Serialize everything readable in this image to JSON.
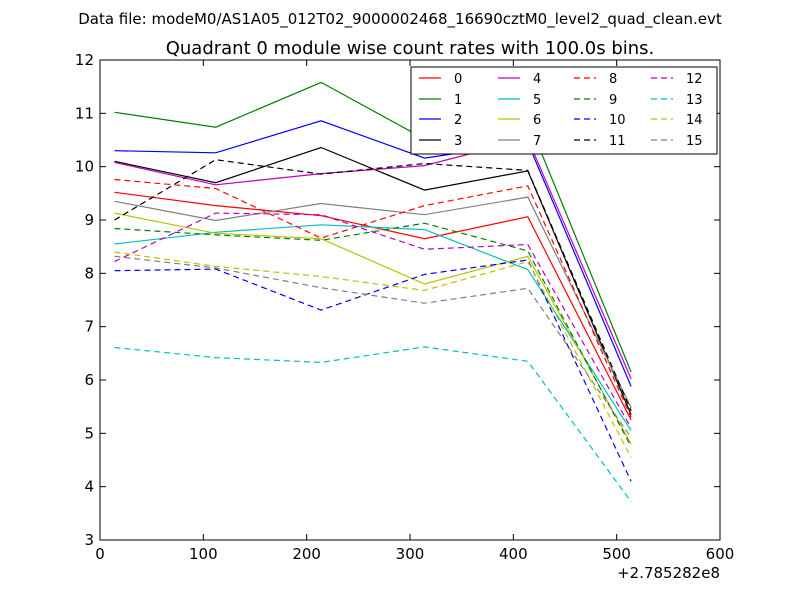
{
  "header": {
    "data_file": "Data file: modeM0/AS1A05_012T02_9000002468_16690cztM0_level2_quad_clean.evt"
  },
  "chart_data": {
    "type": "line",
    "title": "Quadrant 0 module wise count rates with 100.0s bins.",
    "xlabel": "",
    "ylabel": "",
    "x_offset_label": "+2.785282e8",
    "xlim": [
      0,
      600
    ],
    "ylim": [
      3,
      12
    ],
    "xticks": [
      "0",
      "100",
      "200",
      "300",
      "400",
      "500",
      "600"
    ],
    "yticks": [
      "3",
      "4",
      "5",
      "6",
      "7",
      "8",
      "9",
      "10",
      "11",
      "12"
    ],
    "grid": false,
    "legend_position": "top-right",
    "x": [
      14,
      112,
      214,
      314,
      414,
      514
    ],
    "series": [
      {
        "name": "0",
        "color": "#ff0000",
        "dash": "solid",
        "values": [
          9.52,
          9.27,
          9.08,
          8.65,
          9.06,
          5.25
        ]
      },
      {
        "name": "1",
        "color": "#008000",
        "dash": "solid",
        "values": [
          11.02,
          10.74,
          11.58,
          10.52,
          10.88,
          6.15
        ]
      },
      {
        "name": "2",
        "color": "#0000ff",
        "dash": "solid",
        "values": [
          10.3,
          10.26,
          10.86,
          10.16,
          10.45,
          5.88
        ]
      },
      {
        "name": "3",
        "color": "#000000",
        "dash": "solid",
        "values": [
          10.1,
          9.7,
          10.36,
          9.56,
          9.92,
          5.35
        ]
      },
      {
        "name": "4",
        "color": "#bf00bf",
        "dash": "solid",
        "values": [
          10.08,
          9.66,
          9.87,
          10.02,
          10.52,
          6.02
        ]
      },
      {
        "name": "5",
        "color": "#00bfbf",
        "dash": "solid",
        "values": [
          8.55,
          8.77,
          8.91,
          8.82,
          8.07,
          5.05
        ]
      },
      {
        "name": "6",
        "color": "#bfbf00",
        "dash": "solid",
        "values": [
          9.13,
          8.75,
          8.65,
          7.8,
          8.32,
          4.8
        ]
      },
      {
        "name": "7",
        "color": "#808080",
        "dash": "solid",
        "values": [
          9.35,
          8.99,
          9.31,
          9.1,
          9.43,
          5.48
        ]
      },
      {
        "name": "8",
        "color": "#ff0000",
        "dash": "dashed",
        "values": [
          9.76,
          9.59,
          8.66,
          9.27,
          9.64,
          5.3
        ]
      },
      {
        "name": "9",
        "color": "#008000",
        "dash": "dashed",
        "values": [
          8.84,
          8.72,
          8.62,
          8.94,
          8.42,
          4.75
        ]
      },
      {
        "name": "10",
        "color": "#0000ff",
        "dash": "dashed",
        "values": [
          8.05,
          8.08,
          7.31,
          7.98,
          8.25,
          4.1
        ]
      },
      {
        "name": "11",
        "color": "#000000",
        "dash": "dashed",
        "values": [
          9.0,
          10.13,
          9.86,
          10.06,
          9.93,
          5.42
        ]
      },
      {
        "name": "12",
        "color": "#bf00bf",
        "dash": "dashed",
        "values": [
          8.22,
          9.13,
          9.1,
          8.45,
          8.54,
          5.1
        ]
      },
      {
        "name": "13",
        "color": "#00bfbf",
        "dash": "dashed",
        "values": [
          6.61,
          6.42,
          6.33,
          6.62,
          6.35,
          3.72
        ]
      },
      {
        "name": "14",
        "color": "#bfbf00",
        "dash": "dashed",
        "values": [
          8.4,
          8.13,
          7.94,
          7.68,
          8.22,
          4.55
        ]
      },
      {
        "name": "15",
        "color": "#808080",
        "dash": "dashed",
        "values": [
          8.32,
          8.1,
          7.73,
          7.44,
          7.72,
          4.92
        ]
      }
    ]
  }
}
